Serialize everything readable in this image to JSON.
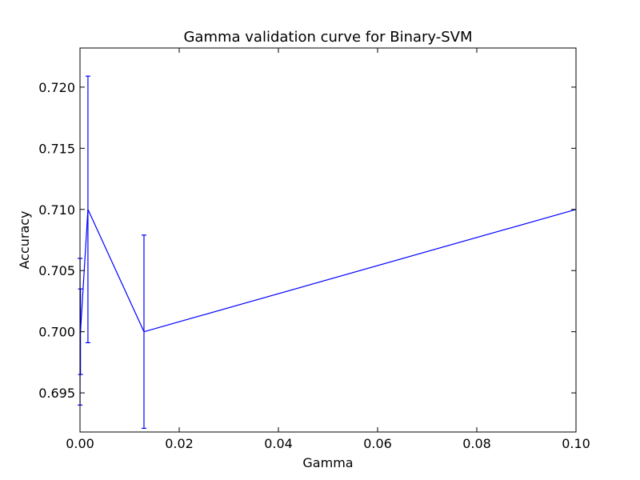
{
  "chart_data": {
    "type": "line",
    "title": "Gamma validation curve for Binary-SVM",
    "xlabel": "Gamma",
    "ylabel": "Accuracy",
    "xlim": [
      0.0,
      0.1
    ],
    "ylim": [
      0.6918,
      0.7232
    ],
    "x_ticks": [
      0.0,
      0.02,
      0.04,
      0.06,
      0.08,
      0.1
    ],
    "x_tick_labels": [
      "0.00",
      "0.02",
      "0.04",
      "0.06",
      "0.08",
      "0.10"
    ],
    "y_ticks": [
      0.695,
      0.7,
      0.705,
      0.71,
      0.715,
      0.72
    ],
    "y_tick_labels": [
      "0.695",
      "0.700",
      "0.705",
      "0.710",
      "0.715",
      "0.720"
    ],
    "grid": false,
    "legend": null,
    "series": [
      {
        "color": "#0000ff",
        "points": [
          {
            "x": 1e-05,
            "y": 0.7,
            "err": 0.006
          },
          {
            "x": 0.0001,
            "y": 0.7,
            "err": 0.0035
          },
          {
            "x": 0.0016,
            "y": 0.71,
            "err": 0.0109
          },
          {
            "x": 0.0129,
            "y": 0.7,
            "err": 0.0079
          },
          {
            "x": 0.1,
            "y": 0.71,
            "err": null
          }
        ]
      }
    ]
  }
}
